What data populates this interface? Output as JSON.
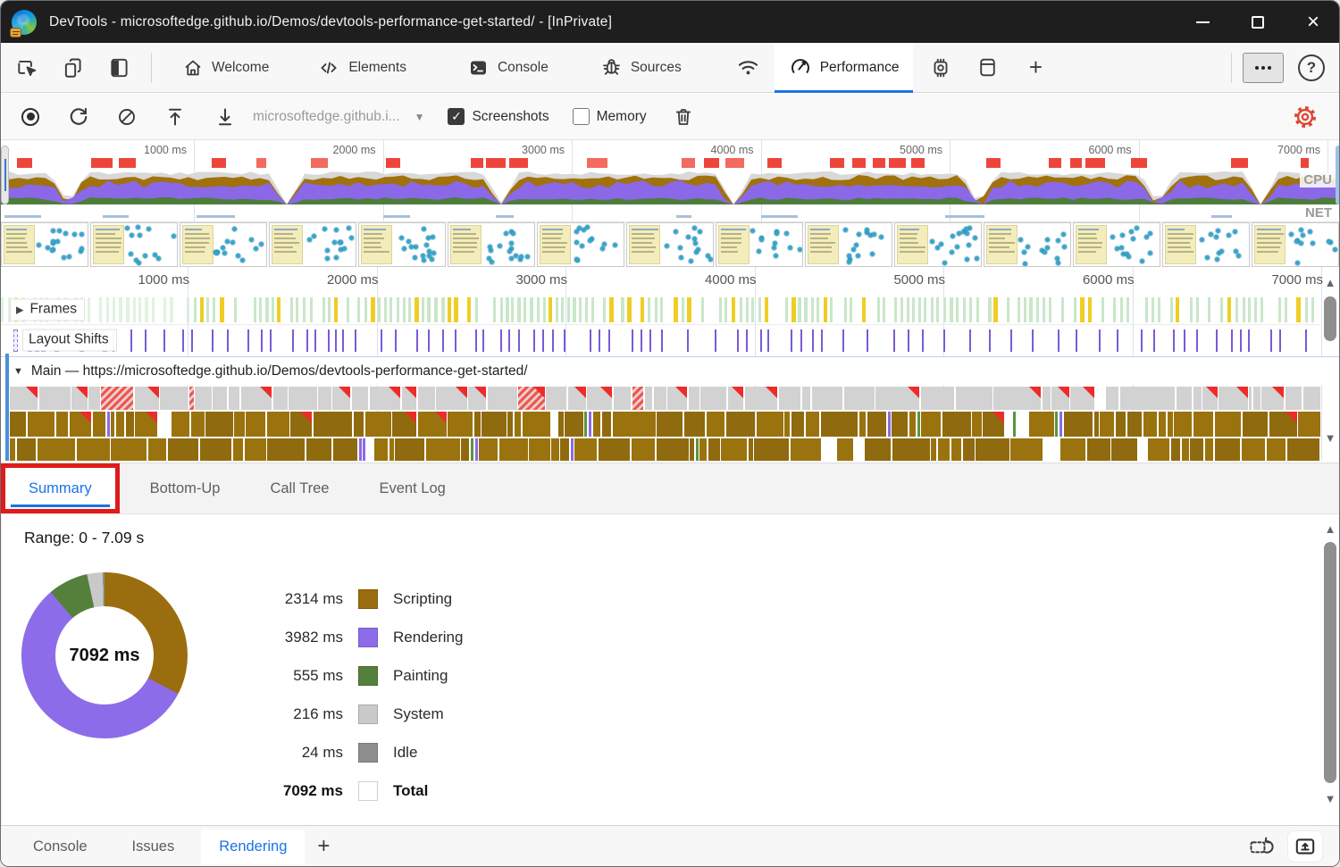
{
  "window": {
    "title": "DevTools - microsoftedge.github.io/Demos/devtools-performance-get-started/ - [InPrivate]"
  },
  "tabbar": {
    "tabs": [
      {
        "label": "Welcome",
        "active": false
      },
      {
        "label": "Elements",
        "active": false
      },
      {
        "label": "Console",
        "active": false
      },
      {
        "label": "Sources",
        "active": false
      },
      {
        "label": "Performance",
        "active": true
      }
    ]
  },
  "toolbar": {
    "page_selector": "microsoftedge.github.i...",
    "screenshots": {
      "label": "Screenshots",
      "checked": true,
      "checkmark": "✓"
    },
    "memory": {
      "label": "Memory",
      "checked": false
    }
  },
  "overview": {
    "time_labels": [
      "1000 ms",
      "2000 ms",
      "3000 ms",
      "4000 ms",
      "5000 ms",
      "6000 ms",
      "7000 ms"
    ],
    "cpu_label": "CPU",
    "net_label": "NET"
  },
  "timeline": {
    "time_labels": [
      "1000 ms",
      "2000 ms",
      "3000 ms",
      "4000 ms",
      "5000 ms",
      "6000 ms",
      "7000 ms"
    ],
    "frames_label": "Frames",
    "layout_shifts_label": "Layout Shifts",
    "main_track_label": "Main — https://microsoftedge.github.io/Demos/devtools-performance-get-started/"
  },
  "detail_tabs": [
    {
      "label": "Summary",
      "active": true,
      "highlighted": true
    },
    {
      "label": "Bottom-Up",
      "active": false
    },
    {
      "label": "Call Tree",
      "active": false
    },
    {
      "label": "Event Log",
      "active": false
    }
  ],
  "summary": {
    "range_label": "Range: 0 - 7.09 s"
  },
  "chart_data": {
    "type": "pie",
    "donut": true,
    "title": "Performance time summary by category",
    "center_label": "7092 ms",
    "categories": [
      "Scripting",
      "Rendering",
      "Painting",
      "System",
      "Idle"
    ],
    "values": [
      2314,
      3982,
      555,
      216,
      24
    ],
    "value_labels": [
      "2314 ms",
      "3982 ms",
      "555 ms",
      "216 ms",
      "24 ms"
    ],
    "colors": [
      "#9a6d0e",
      "#8c6ce8",
      "#55803c",
      "#c9c9c9",
      "#8e8e8e"
    ],
    "total": {
      "value": 7092,
      "value_label": "7092 ms",
      "label": "Total"
    },
    "legend_position": "right"
  },
  "drawer": {
    "tabs": [
      {
        "label": "Console",
        "active": false
      },
      {
        "label": "Issues",
        "active": false
      },
      {
        "label": "Rendering",
        "active": true
      }
    ]
  },
  "colors": {
    "accent_blue": "#1a73e8",
    "highlight_red": "#e01b1b",
    "gear_red": "#e0452f",
    "scripting": "#9a6d0e",
    "rendering": "#8c6ce8",
    "painting": "#55803c",
    "system": "#c9c9c9",
    "idle": "#8e8e8e",
    "task_gray": "#d2d2d2",
    "long_task_red": "#ee2b2b"
  }
}
